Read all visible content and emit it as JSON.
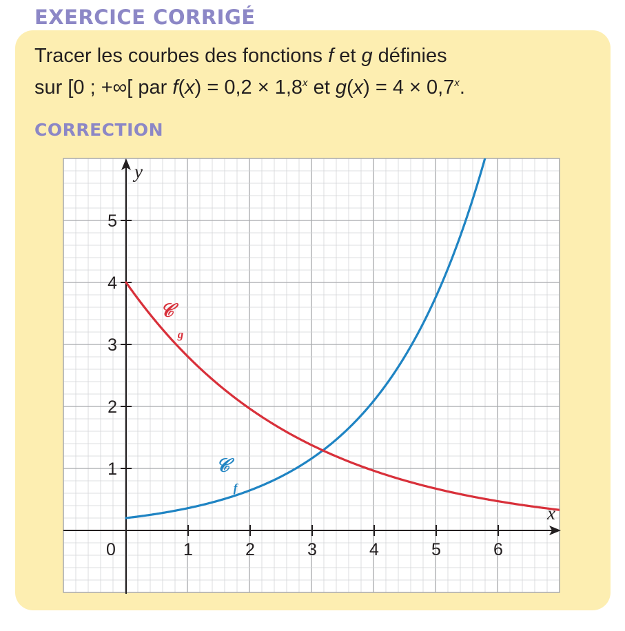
{
  "header": {
    "title": "EXERCICE CORRIGÉ",
    "correction_label": "CORRECTION"
  },
  "statement": {
    "p1": "Tracer les courbes des fonctions ",
    "f": "f",
    "p2": " et ",
    "g": "g",
    "p3": " définies",
    "p4": "sur [0 ; +∞[ par ",
    "f2": "f",
    "p5": "(",
    "x1": "x",
    "p6": ") = 0,2 × 1,8",
    "exp1": "x",
    "p7": " et ",
    "g2": "g",
    "p8": "(",
    "x2": "x",
    "p9": ") = 4 × 0,7",
    "exp2": "x",
    "p10": "."
  },
  "chart_data": {
    "type": "line",
    "title": "",
    "xlabel": "x",
    "ylabel": "y",
    "xlim": [
      -1,
      7
    ],
    "ylim": [
      -1,
      6
    ],
    "x_ticks": [
      1,
      2,
      3,
      4,
      5,
      6
    ],
    "y_ticks": [
      1,
      2,
      3,
      4,
      5
    ],
    "x_tick_labels": [
      "1",
      "2",
      "3",
      "4",
      "5",
      "6"
    ],
    "y_tick_labels": [
      "1",
      "2",
      "3",
      "4",
      "5"
    ],
    "origin_label": "0",
    "grid": true,
    "series": [
      {
        "name": "f",
        "label": "𝒞",
        "subscript": "f",
        "formula": "0.2*1.8^x",
        "color": "#1f84c3",
        "x": [
          0,
          0.5,
          1,
          1.5,
          2,
          2.5,
          3,
          3.5,
          4,
          4.5,
          5,
          5.5,
          5.8
        ],
        "values": [
          0.2,
          0.27,
          0.36,
          0.48,
          0.65,
          0.87,
          1.17,
          1.56,
          2.1,
          2.82,
          3.78,
          5.07,
          6.0
        ]
      },
      {
        "name": "g",
        "label": "𝒞",
        "subscript": "g",
        "formula": "4*0.7^x",
        "color": "#d8303a",
        "x": [
          0,
          0.5,
          1,
          1.5,
          2,
          2.5,
          3,
          3.5,
          4,
          4.5,
          5,
          5.5,
          6,
          6.5,
          7
        ],
        "values": [
          4.0,
          3.35,
          2.8,
          2.34,
          1.96,
          1.64,
          1.37,
          1.15,
          0.96,
          0.8,
          0.67,
          0.56,
          0.47,
          0.39,
          0.33
        ]
      }
    ]
  }
}
